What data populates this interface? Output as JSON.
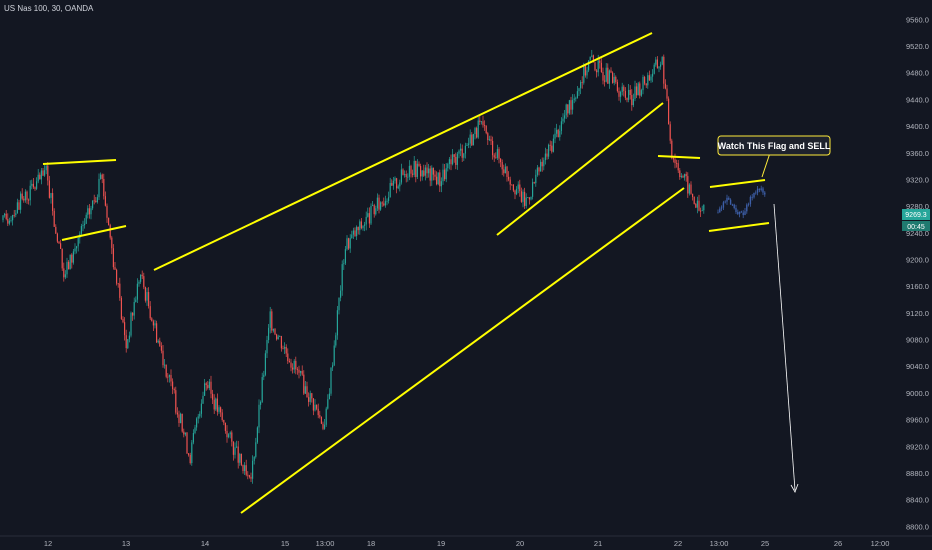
{
  "title": "US Nas 100, 30, OANDA",
  "chart_data": {
    "type": "candlestick",
    "ylim": [
      8790,
      9580
    ],
    "y_ticks": [
      "9560.0",
      "9520.0",
      "9480.0",
      "9440.0",
      "9400.0",
      "9360.0",
      "9320.0",
      "9280.0",
      "9240.0",
      "9200.0",
      "9160.0",
      "9120.0",
      "9080.0",
      "9040.0",
      "9000.0",
      "8960.0",
      "8920.0",
      "8880.0",
      "8840.0",
      "8800.0"
    ],
    "x_ticks": [
      "12",
      "13",
      "14",
      "15",
      "13:00",
      "18",
      "19",
      "20",
      "21",
      "22",
      "13:00",
      "25",
      "26",
      "12:00"
    ],
    "last_price": "9269.3",
    "countdown": "00:45",
    "annotation": "Watch This Flag and SELL",
    "colors": {
      "up": "#26a69a",
      "down": "#ef5350",
      "projection": "#3d5fa8",
      "trendline": "#ffff00",
      "callout_bg": "#1e222d",
      "callout_border": "#ffeb3b",
      "price_tag": "#26a69a",
      "arrow": "#ffffff"
    },
    "key_points": [
      {
        "label": "12",
        "price": 9250
      },
      {
        "label": "12",
        "price": 9330
      },
      {
        "label": "12",
        "price": 9175
      },
      {
        "label": "13",
        "price": 9320
      },
      {
        "label": "13",
        "price": 9070
      },
      {
        "label": "14",
        "price": 9180
      },
      {
        "label": "14",
        "price": 8905
      },
      {
        "label": "15",
        "price": 9020
      },
      {
        "label": "15",
        "price": 8860
      },
      {
        "label": "13:00",
        "price": 9110
      },
      {
        "label": "18",
        "price": 8950
      },
      {
        "label": "18",
        "price": 9220
      },
      {
        "label": "19",
        "price": 9340
      },
      {
        "label": "19",
        "price": 9320
      },
      {
        "label": "20",
        "price": 9400
      },
      {
        "label": "20",
        "price": 9285
      },
      {
        "label": "21",
        "price": 9500
      },
      {
        "label": "21",
        "price": 9440
      },
      {
        "label": "22",
        "price": 9500
      },
      {
        "label": "22",
        "price": 9360
      },
      {
        "label": "22",
        "price": 9270
      },
      {
        "label": "13:00",
        "price": 9310
      },
      {
        "label": "13:00",
        "price": 9270
      }
    ]
  }
}
